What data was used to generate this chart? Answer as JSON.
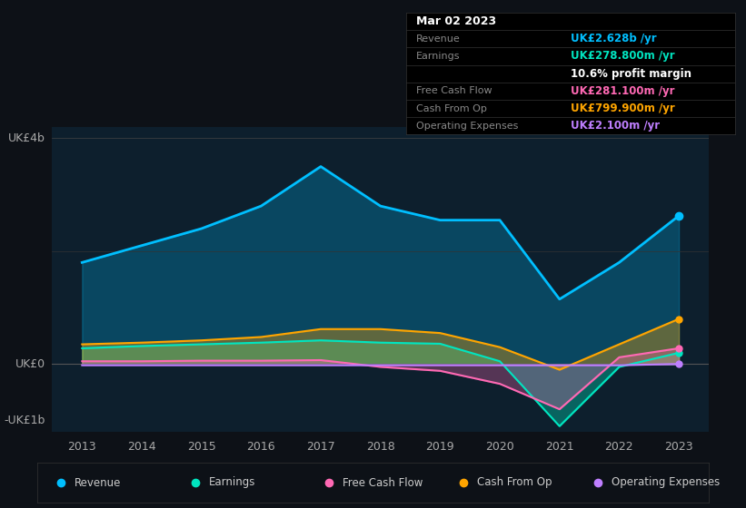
{
  "bg_color": "#0d1117",
  "chart_bg": "#0d1f2d",
  "title": "Mar 02 2023",
  "ylabel_top": "UK£4b",
  "ylabel_bottom": "-UK£1b",
  "ylabel_zero": "UK£0",
  "x_years": [
    2013,
    2014,
    2015,
    2016,
    2017,
    2018,
    2019,
    2020,
    2021,
    2022,
    2023
  ],
  "revenue": [
    1.8,
    2.1,
    2.4,
    2.8,
    3.5,
    2.8,
    2.55,
    2.55,
    1.15,
    1.8,
    2.628
  ],
  "earnings": [
    0.28,
    0.32,
    0.35,
    0.38,
    0.42,
    0.38,
    0.36,
    0.05,
    -1.1,
    -0.05,
    0.2
  ],
  "free_cash_flow": [
    0.05,
    0.05,
    0.06,
    0.06,
    0.07,
    -0.05,
    -0.12,
    -0.35,
    -0.8,
    0.12,
    0.28
  ],
  "cash_from_op": [
    0.35,
    0.38,
    0.42,
    0.48,
    0.62,
    0.62,
    0.55,
    0.3,
    -0.1,
    0.35,
    0.8
  ],
  "operating_expenses": [
    -0.02,
    -0.02,
    -0.02,
    -0.02,
    -0.02,
    -0.02,
    -0.02,
    -0.02,
    -0.02,
    -0.02,
    0.0021
  ],
  "revenue_color": "#00bfff",
  "earnings_color": "#00e5c0",
  "free_cash_flow_color": "#ff69b4",
  "cash_from_op_color": "#ffa500",
  "operating_expenses_color": "#bf7fff",
  "info_box_bg": "#000000",
  "info_title_color": "#ffffff",
  "info_label_color": "#888888",
  "info_value_revenue_color": "#00bfff",
  "info_value_earnings_color": "#00e5c0",
  "info_value_fcf_color": "#ff69b4",
  "info_value_cashop_color": "#ffa500",
  "info_value_opex_color": "#bf7fff",
  "info_margin_color": "#ffffff",
  "legend_bg": "#0d1117",
  "ylim_min": -1.2,
  "ylim_max": 4.2
}
